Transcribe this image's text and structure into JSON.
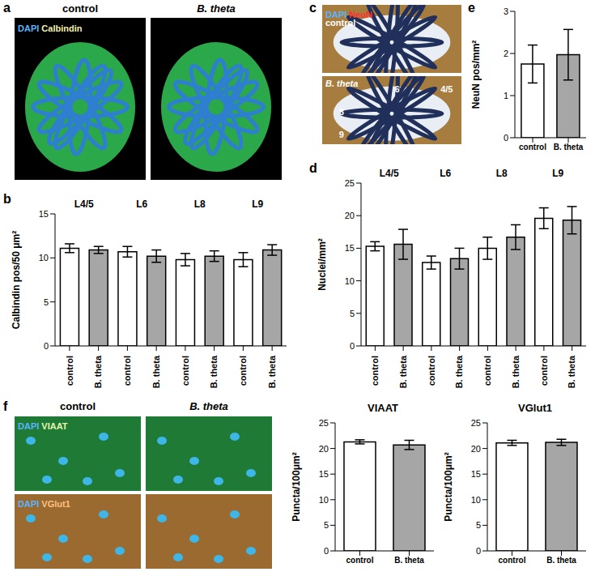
{
  "chart_data": [
    {
      "panel": "b",
      "type": "bar",
      "y_label": "Calbindin pos/50 μm²",
      "groups": [
        "L4/5",
        "L6",
        "L8",
        "L9"
      ],
      "categories": [
        "control",
        "B. theta",
        "control",
        "B. theta",
        "control",
        "B. theta",
        "control",
        "B. theta"
      ],
      "values": [
        11.1,
        10.9,
        10.7,
        10.2,
        9.8,
        10.2,
        9.8,
        10.9
      ],
      "errors": [
        0.5,
        0.4,
        0.6,
        0.7,
        0.7,
        0.6,
        0.8,
        0.6
      ],
      "colors": [
        "#ffffff",
        "#a6a6a6",
        "#ffffff",
        "#a6a6a6",
        "#ffffff",
        "#a6a6a6",
        "#ffffff",
        "#a6a6a6"
      ],
      "ylim": [
        0,
        15
      ],
      "yticks": [
        0,
        5,
        10,
        15
      ]
    },
    {
      "panel": "d",
      "type": "bar",
      "y_label": "Nuclei/mm²",
      "groups": [
        "L4/5",
        "L6",
        "L8",
        "L9"
      ],
      "categories": [
        "control",
        "B. theta",
        "control",
        "B. theta",
        "control",
        "B. theta",
        "control",
        "B. theta"
      ],
      "values": [
        15.3,
        15.6,
        12.8,
        13.4,
        15.0,
        16.7,
        19.6,
        19.3
      ],
      "errors": [
        0.7,
        2.3,
        1.0,
        1.6,
        1.7,
        1.9,
        1.6,
        2.1
      ],
      "colors": [
        "#ffffff",
        "#a6a6a6",
        "#ffffff",
        "#a6a6a6",
        "#ffffff",
        "#a6a6a6",
        "#ffffff",
        "#a6a6a6"
      ],
      "ylim": [
        0,
        25
      ],
      "yticks": [
        0,
        5,
        10,
        15,
        20,
        25
      ]
    },
    {
      "panel": "e",
      "type": "bar",
      "y_label": "NeuN pos/mm²",
      "categories": [
        "control",
        "B. theta"
      ],
      "values": [
        1.75,
        1.97
      ],
      "errors": [
        0.45,
        0.6
      ],
      "colors": [
        "#ffffff",
        "#a6a6a6"
      ],
      "ylim": [
        0,
        3
      ],
      "yticks": [
        0,
        1,
        2,
        3
      ]
    },
    {
      "panel": "f",
      "type": "bar",
      "title": "VIAAT",
      "y_label": "Puncta/100μm²",
      "categories": [
        "control",
        "B. theta"
      ],
      "values": [
        21.3,
        20.7
      ],
      "errors": [
        0.4,
        0.9
      ],
      "colors": [
        "#ffffff",
        "#a6a6a6"
      ],
      "ylim": [
        0,
        25
      ],
      "yticks": [
        0,
        5,
        10,
        15,
        20,
        25
      ]
    },
    {
      "type": "bar",
      "title": "VGlut1",
      "y_label": "Puncta/100μm²",
      "categories": [
        "control",
        "B. theta"
      ],
      "values": [
        21.1,
        21.2
      ],
      "errors": [
        0.5,
        0.6
      ],
      "colors": [
        "#ffffff",
        "#a6a6a6"
      ],
      "ylim": [
        0,
        25
      ],
      "yticks": [
        0,
        5,
        10,
        15,
        20,
        25
      ]
    }
  ],
  "images": [
    {
      "panel": "a",
      "stain": [
        "DAPI",
        "Calbindin"
      ],
      "titles": [
        "control",
        "B. theta"
      ]
    },
    {
      "panel": "c",
      "stain": [
        "DAPI",
        "NeuN"
      ],
      "row_labels": [
        "control",
        "B. theta"
      ],
      "lobules": [
        "6",
        "4/5",
        "8",
        "9"
      ]
    },
    {
      "panel": "f",
      "titles": [
        "control",
        "B. theta"
      ],
      "rows": [
        [
          "DAPI",
          "VIAAT"
        ],
        [
          "DAPI",
          "VGlut1"
        ]
      ]
    }
  ]
}
